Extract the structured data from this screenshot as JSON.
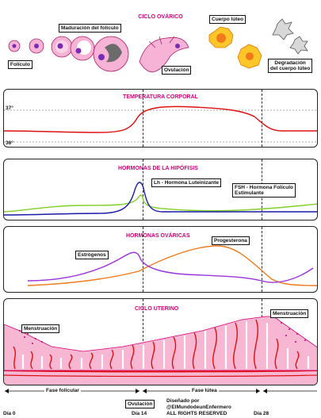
{
  "ovarian_cycle": {
    "title": "CICLO OVÁRICO",
    "follicle": "Folículo",
    "maturation": "Maduración del folículo",
    "ovulation": "Ovulación",
    "corpus_luteum": "Cuerpo lúteo",
    "degradation_line1": "Degradación",
    "degradation_line2": "del cuerpo lúteo"
  },
  "temperature": {
    "title": "TEMPERATURA CORPORAL",
    "t_high": "37°",
    "t_low": "36°"
  },
  "pituitary": {
    "title": "HORMONAS DE LA HIPÓFISIS",
    "lh": "Lh - Hormona Luteinizante",
    "fsh_line1": "FSH - Hormona Folículo",
    "fsh_line2": "Estimulante",
    "colors": {
      "lh": "#1a1aa8",
      "fsh": "#7fcf28"
    }
  },
  "ovarian_hormones": {
    "title": "HORMONAS OVÁRICAS",
    "estrogen": "Estrógenos",
    "progesterone": "Progesterona",
    "colors": {
      "estrogen": "#9b33d6",
      "progesterone": "#f07a1a"
    }
  },
  "uterine": {
    "title": "CICLO UTERINO",
    "menstruation_left": "Menstruación",
    "menstruation_right": "Menstruación"
  },
  "timeline": {
    "follicular": "Fase folicular",
    "luteal": "Fase lútea",
    "day0": "Día 0",
    "ovulation": "Ovulación",
    "day14": "Día 14",
    "day28": "Día 28",
    "credit_line1": "Diseñado por",
    "credit_line2": "@ElMundodeunEnfermero",
    "credit_line3": "ALL RIGHTS RESERVED"
  },
  "colors": {
    "accent": "#d4007a",
    "temperature": "#e01010",
    "uterus": "#f7b6d2"
  }
}
